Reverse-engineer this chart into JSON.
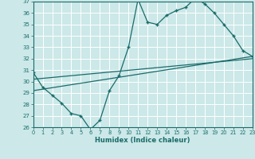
{
  "background_color": "#cce8e8",
  "grid_color": "#ffffff",
  "line_color": "#1a6b6b",
  "xlabel": "Humidex (Indice chaleur)",
  "ylim": [
    26,
    37
  ],
  "xlim": [
    0,
    23
  ],
  "yticks": [
    26,
    27,
    28,
    29,
    30,
    31,
    32,
    33,
    34,
    35,
    36,
    37
  ],
  "xticks": [
    0,
    1,
    2,
    3,
    4,
    5,
    6,
    7,
    8,
    9,
    10,
    11,
    12,
    13,
    14,
    15,
    16,
    17,
    18,
    19,
    20,
    21,
    22,
    23
  ],
  "line1_x": [
    0,
    1,
    2,
    3,
    4,
    5,
    6,
    7,
    8,
    9,
    10,
    11,
    12,
    13,
    14,
    15,
    16,
    17,
    18,
    19,
    20,
    21,
    22,
    23
  ],
  "line1_y": [
    30.8,
    29.5,
    28.8,
    28.1,
    27.2,
    27.0,
    25.8,
    26.6,
    29.2,
    30.5,
    33.0,
    37.2,
    35.2,
    35.0,
    35.8,
    36.2,
    36.5,
    37.3,
    36.8,
    36.0,
    35.0,
    34.0,
    32.7,
    32.2
  ],
  "line2_x": [
    0,
    23
  ],
  "line2_y": [
    29.2,
    32.2
  ],
  "line3_x": [
    0,
    23
  ],
  "line3_y": [
    30.2,
    32.0
  ]
}
